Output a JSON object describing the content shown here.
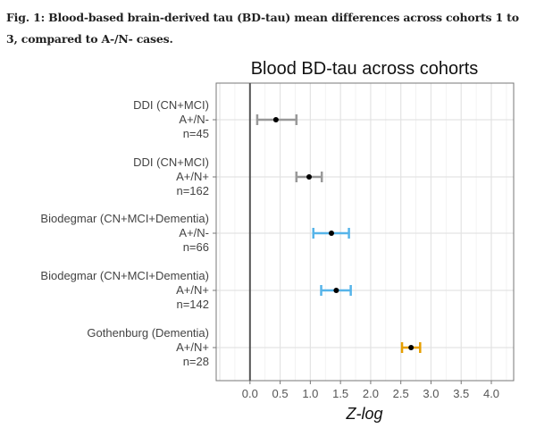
{
  "caption": "Fig. 1: Blood-based brain-derived tau (BD-tau) mean differences across cohorts 1 to 3, compared to A-/N- cases.",
  "chart_data": {
    "type": "forest",
    "title": "Blood BD-tau across cohorts",
    "xlabel": "Z-log",
    "ylabel": "",
    "xlim": [
      -0.56,
      4.37
    ],
    "xticks": [
      "0.0",
      "0.5",
      "1.0",
      "1.5",
      "2.0",
      "2.5",
      "3.0",
      "3.5",
      "4.0"
    ],
    "grid": true,
    "reference_line": 0,
    "rows": [
      {
        "label": [
          "DDI (CN+MCI)",
          "A+/N-",
          "n=45"
        ],
        "mean": 0.43,
        "lower": 0.12,
        "upper": 0.77,
        "color": "#999999"
      },
      {
        "label": [
          "DDI (CN+MCI)",
          "A+/N+",
          "n=162"
        ],
        "mean": 0.98,
        "lower": 0.77,
        "upper": 1.19,
        "color": "#999999"
      },
      {
        "label": [
          "Biodegmar (CN+MCI+Dementia)",
          "A+/N-",
          "n=66"
        ],
        "mean": 1.35,
        "lower": 1.05,
        "upper": 1.64,
        "color": "#56B4E9"
      },
      {
        "label": [
          "Biodegmar (CN+MCI+Dementia)",
          "A+/N+",
          "n=142"
        ],
        "mean": 1.43,
        "lower": 1.18,
        "upper": 1.67,
        "color": "#56B4E9"
      },
      {
        "label": [
          "Gothenburg (Dementia)",
          "A+/N+",
          "n=28"
        ],
        "mean": 2.67,
        "lower": 2.52,
        "upper": 2.82,
        "color": "#E69F00"
      }
    ]
  }
}
